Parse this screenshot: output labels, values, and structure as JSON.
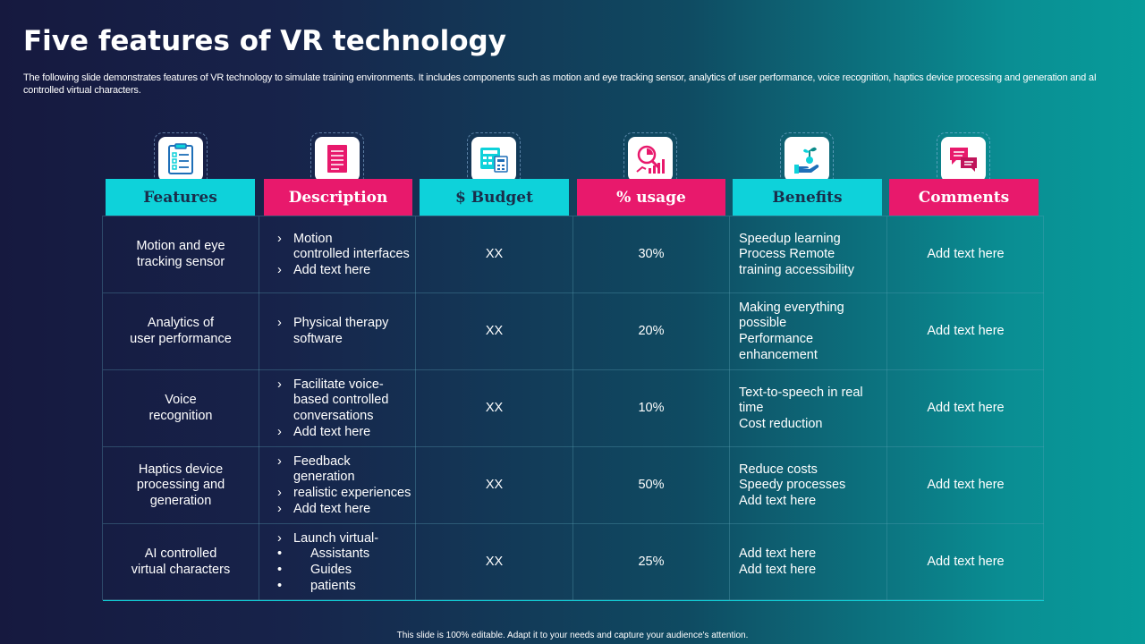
{
  "title": "Five features of VR technology",
  "subtitle": "The following slide demonstrates features of VR technology to  simulate training environments. It includes components such as motion and eye tracking sensor, analytics of user performance, voice recognition, haptics device processing and generation and aI controlled virtual characters.",
  "headers": [
    {
      "label": "Features",
      "icon": "checklist-icon",
      "color": "#0ed2da"
    },
    {
      "label": "Description",
      "icon": "document-icon",
      "color": "#e8196c"
    },
    {
      "label": "$ Budget",
      "icon": "budget-calculator-icon",
      "color": "#0ed2da"
    },
    {
      "label": "% usage",
      "icon": "analytics-chart-icon",
      "color": "#e8196c"
    },
    {
      "label": "Benefits",
      "icon": "money-plant-hand-icon",
      "color": "#0ed2da"
    },
    {
      "label": "Comments",
      "icon": "chat-bubbles-icon",
      "color": "#e8196c"
    }
  ],
  "rows": [
    {
      "feature": [
        "Motion and eye",
        "tracking sensor"
      ],
      "description": [
        {
          "marker": "›",
          "text": "Motion"
        },
        {
          "marker": "",
          "text": "controlled interfaces"
        },
        {
          "marker": "›",
          "text": "Add text here"
        }
      ],
      "budget": "XX",
      "usage": "30%",
      "benefits": [
        "Speedup learning",
        "Process Remote",
        "training accessibility"
      ],
      "comments": "Add text here"
    },
    {
      "feature": [
        "Analytics of",
        "user performance"
      ],
      "description": [
        {
          "marker": "›",
          "text": "Physical therapy"
        },
        {
          "marker": "",
          "text": "software"
        }
      ],
      "budget": "XX",
      "usage": "20%",
      "benefits": [
        "Making everything",
        "possible",
        "Performance",
        "enhancement"
      ],
      "comments": "Add text here"
    },
    {
      "feature": [
        "Voice",
        "recognition"
      ],
      "description": [
        {
          "marker": "›",
          "text": "Facilitate voice-"
        },
        {
          "marker": "",
          "text": "based controlled"
        },
        {
          "marker": "",
          "text": "conversations"
        },
        {
          "marker": "›",
          "text": "Add text here"
        }
      ],
      "budget": "XX",
      "usage": "10%",
      "benefits": [
        "Text-to-speech in real",
        "time",
        "Cost reduction"
      ],
      "comments": "Add text here"
    },
    {
      "feature": [
        "Haptics device",
        "processing and",
        "generation"
      ],
      "description": [
        {
          "marker": "›",
          "text": "Feedback"
        },
        {
          "marker": "",
          "text": "generation"
        },
        {
          "marker": "›",
          "text": "realistic experiences"
        },
        {
          "marker": "›",
          "text": "Add text here"
        }
      ],
      "budget": "XX",
      "usage": "50%",
      "benefits": [
        "Reduce costs",
        "Speedy processes",
        "Add text here"
      ],
      "comments": "Add text here"
    },
    {
      "feature": [
        "AI controlled",
        "virtual characters"
      ],
      "description": [
        {
          "marker": "›",
          "text": "Launch virtual-"
        },
        {
          "marker": "•",
          "text": "Assistants",
          "sub": true
        },
        {
          "marker": "•",
          "text": "Guides",
          "sub": true
        },
        {
          "marker": "•",
          "text": "patients",
          "sub": true
        }
      ],
      "budget": "XX",
      "usage": "25%",
      "benefits": [
        "Add text here",
        "Add text here"
      ],
      "comments": "Add text here"
    }
  ],
  "footer": "This slide is 100% editable.  Adapt it to your needs and capture your audience's attention."
}
